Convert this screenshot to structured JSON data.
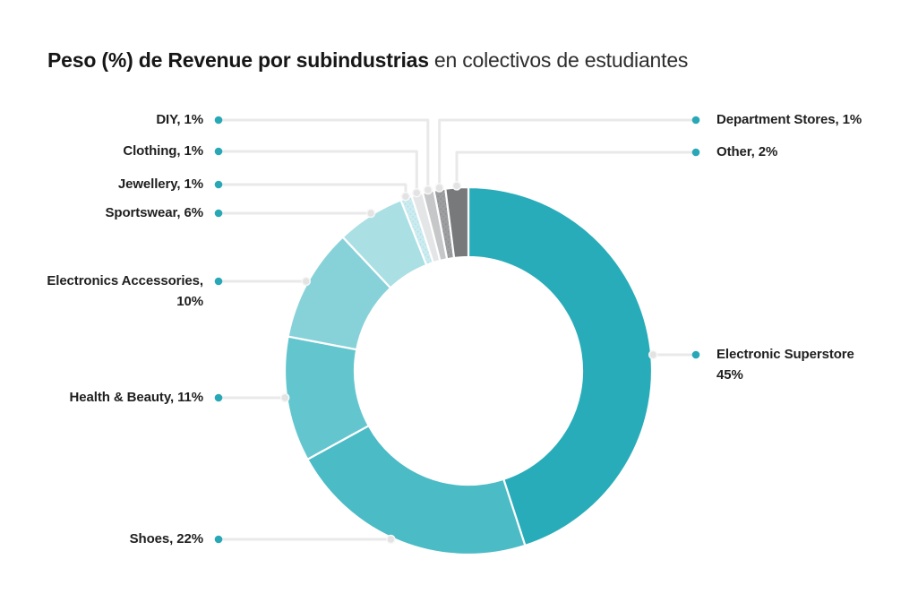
{
  "title": {
    "emphasis": "Peso (%) de Revenue por subindustrias",
    "rest": "en colectivos de estudiantes"
  },
  "chart_data": {
    "type": "pie",
    "variant": "donut",
    "title": "Peso (%) de Revenue por subindustrias en colectivos de estudiantes",
    "unit": "%",
    "start_angle_deg": 0,
    "direction": "clockwise",
    "segments": [
      {
        "id": "electronic-superstore",
        "label": "Electronic Superstore",
        "value": 45,
        "color": "#29ACB9",
        "textured": false,
        "label_lines": [
          "Electronic Superstore",
          "45%"
        ]
      },
      {
        "id": "shoes",
        "label": "Shoes",
        "value": 22,
        "color": "#4BBBC6",
        "textured": false,
        "label_lines": [
          "Shoes, 22%"
        ]
      },
      {
        "id": "health-beauty",
        "label": "Health & Beauty",
        "value": 11,
        "color": "#63C6CE",
        "textured": false,
        "label_lines": [
          "Health & Beauty, 11%"
        ]
      },
      {
        "id": "electronics-accessories",
        "label": "Electronics Accessories",
        "value": 10,
        "color": "#87D2D9",
        "textured": false,
        "label_lines": [
          "Electronics Accessories,",
          "10%"
        ]
      },
      {
        "id": "sportswear",
        "label": "Sportswear",
        "value": 6,
        "color": "#AADFE4",
        "textured": false,
        "label_lines": [
          "Sportswear, 6%"
        ]
      },
      {
        "id": "jewellery",
        "label": "Jewellery",
        "value": 1,
        "color": "#CBEBEF",
        "textured": true,
        "texture_dot_color": "#A5DCE4",
        "label_lines": [
          "Jewellery, 1%"
        ]
      },
      {
        "id": "clothing",
        "label": "Clothing",
        "value": 1,
        "color": "#E4E5E6",
        "textured": false,
        "label_lines": [
          "Clothing, 1%"
        ]
      },
      {
        "id": "diy",
        "label": "DIY",
        "value": 1,
        "color": "#C6C7C8",
        "textured": false,
        "label_lines": [
          "DIY, 1%"
        ]
      },
      {
        "id": "department-stores",
        "label": "Department Stores",
        "value": 1,
        "color": "#9C9EA0",
        "textured": true,
        "texture_dot_color": "#85878A",
        "label_lines": [
          "Department Stores, 1%"
        ]
      },
      {
        "id": "other",
        "label": "Other",
        "value": 2,
        "color": "#77797B",
        "textured": false,
        "label_lines": [
          "Other, 2%"
        ]
      }
    ],
    "colors": {
      "connector_line": "#E9E9E9",
      "marker_fill": "#E3E3E3",
      "marker_ring": "#F7F7F7",
      "bullet": "#28A8B6",
      "slice_gap": "#FFFFFF"
    }
  }
}
